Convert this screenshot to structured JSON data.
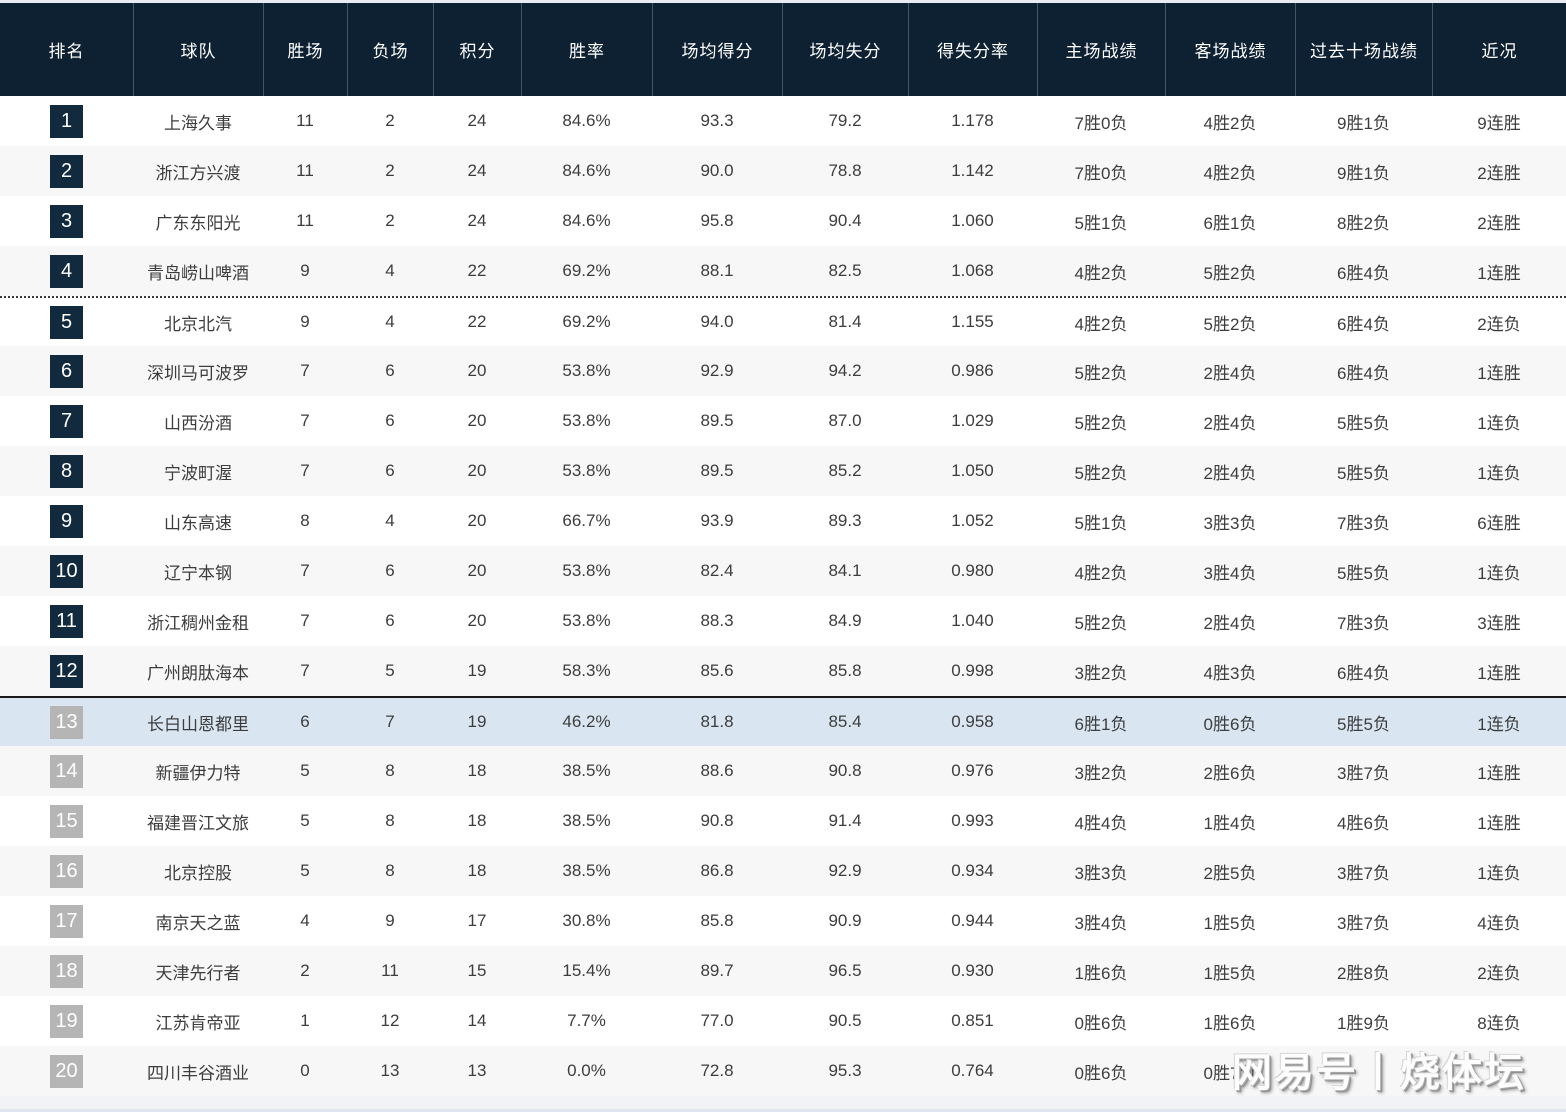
{
  "colors": {
    "header_bg": "#0e2132",
    "header_text": "#ffffff",
    "row_bg": "#ffffff",
    "row_alt_bg": "#f7f7f7",
    "highlight_row_bg": "#d9e6f2",
    "badge_navy": "#122a3e",
    "badge_gray": "#b5b5b5",
    "cell_text": "#3d3d3d"
  },
  "watermark": {
    "text": "网易号丨烧体坛"
  },
  "chart_data": {
    "type": "table",
    "title": "",
    "columns": [
      "排名",
      "球队",
      "胜场",
      "负场",
      "积分",
      "胜率",
      "场均得分",
      "场均失分",
      "得失分率",
      "主场战绩",
      "客场战绩",
      "过去十场战绩",
      "近况"
    ],
    "rows": [
      {
        "rank": "1",
        "team": "上海久事",
        "wins": "11",
        "losses": "2",
        "points": "24",
        "win_rate": "84.6%",
        "avg_scored": "93.3",
        "avg_allowed": "79.2",
        "ratio": "1.178",
        "home": "7胜0负",
        "away": "4胜2负",
        "last10": "9胜1负",
        "streak": "9连胜",
        "badge": "navy",
        "highlight": false,
        "divider": ""
      },
      {
        "rank": "2",
        "team": "浙江方兴渡",
        "wins": "11",
        "losses": "2",
        "points": "24",
        "win_rate": "84.6%",
        "avg_scored": "90.0",
        "avg_allowed": "78.8",
        "ratio": "1.142",
        "home": "7胜0负",
        "away": "4胜2负",
        "last10": "9胜1负",
        "streak": "2连胜",
        "badge": "navy",
        "highlight": false,
        "divider": ""
      },
      {
        "rank": "3",
        "team": "广东东阳光",
        "wins": "11",
        "losses": "2",
        "points": "24",
        "win_rate": "84.6%",
        "avg_scored": "95.8",
        "avg_allowed": "90.4",
        "ratio": "1.060",
        "home": "5胜1负",
        "away": "6胜1负",
        "last10": "8胜2负",
        "streak": "2连胜",
        "badge": "navy",
        "highlight": false,
        "divider": ""
      },
      {
        "rank": "4",
        "team": "青岛崂山啤酒",
        "wins": "9",
        "losses": "4",
        "points": "22",
        "win_rate": "69.2%",
        "avg_scored": "88.1",
        "avg_allowed": "82.5",
        "ratio": "1.068",
        "home": "4胜2负",
        "away": "5胜2负",
        "last10": "6胜4负",
        "streak": "1连胜",
        "badge": "navy",
        "highlight": false,
        "divider": ""
      },
      {
        "rank": "5",
        "team": "北京北汽",
        "wins": "9",
        "losses": "4",
        "points": "22",
        "win_rate": "69.2%",
        "avg_scored": "94.0",
        "avg_allowed": "81.4",
        "ratio": "1.155",
        "home": "4胜2负",
        "away": "5胜2负",
        "last10": "6胜4负",
        "streak": "2连负",
        "badge": "navy",
        "highlight": false,
        "divider": "dashed"
      },
      {
        "rank": "6",
        "team": "深圳马可波罗",
        "wins": "7",
        "losses": "6",
        "points": "20",
        "win_rate": "53.8%",
        "avg_scored": "92.9",
        "avg_allowed": "94.2",
        "ratio": "0.986",
        "home": "5胜2负",
        "away": "2胜4负",
        "last10": "6胜4负",
        "streak": "1连胜",
        "badge": "navy",
        "highlight": false,
        "divider": ""
      },
      {
        "rank": "7",
        "team": "山西汾酒",
        "wins": "7",
        "losses": "6",
        "points": "20",
        "win_rate": "53.8%",
        "avg_scored": "89.5",
        "avg_allowed": "87.0",
        "ratio": "1.029",
        "home": "5胜2负",
        "away": "2胜4负",
        "last10": "5胜5负",
        "streak": "1连负",
        "badge": "navy",
        "highlight": false,
        "divider": ""
      },
      {
        "rank": "8",
        "team": "宁波町渥",
        "wins": "7",
        "losses": "6",
        "points": "20",
        "win_rate": "53.8%",
        "avg_scored": "89.5",
        "avg_allowed": "85.2",
        "ratio": "1.050",
        "home": "5胜2负",
        "away": "2胜4负",
        "last10": "5胜5负",
        "streak": "1连负",
        "badge": "navy",
        "highlight": false,
        "divider": ""
      },
      {
        "rank": "9",
        "team": "山东高速",
        "wins": "8",
        "losses": "4",
        "points": "20",
        "win_rate": "66.7%",
        "avg_scored": "93.9",
        "avg_allowed": "89.3",
        "ratio": "1.052",
        "home": "5胜1负",
        "away": "3胜3负",
        "last10": "7胜3负",
        "streak": "6连胜",
        "badge": "navy",
        "highlight": false,
        "divider": ""
      },
      {
        "rank": "10",
        "team": "辽宁本钢",
        "wins": "7",
        "losses": "6",
        "points": "20",
        "win_rate": "53.8%",
        "avg_scored": "82.4",
        "avg_allowed": "84.1",
        "ratio": "0.980",
        "home": "4胜2负",
        "away": "3胜4负",
        "last10": "5胜5负",
        "streak": "1连负",
        "badge": "navy",
        "highlight": false,
        "divider": ""
      },
      {
        "rank": "11",
        "team": "浙江稠州金租",
        "wins": "7",
        "losses": "6",
        "points": "20",
        "win_rate": "53.8%",
        "avg_scored": "88.3",
        "avg_allowed": "84.9",
        "ratio": "1.040",
        "home": "5胜2负",
        "away": "2胜4负",
        "last10": "7胜3负",
        "streak": "3连胜",
        "badge": "navy",
        "highlight": false,
        "divider": ""
      },
      {
        "rank": "12",
        "team": "广州朗肽海本",
        "wins": "7",
        "losses": "5",
        "points": "19",
        "win_rate": "58.3%",
        "avg_scored": "85.6",
        "avg_allowed": "85.8",
        "ratio": "0.998",
        "home": "3胜2负",
        "away": "4胜3负",
        "last10": "6胜4负",
        "streak": "1连胜",
        "badge": "navy",
        "highlight": false,
        "divider": ""
      },
      {
        "rank": "13",
        "team": "长白山恩都里",
        "wins": "6",
        "losses": "7",
        "points": "19",
        "win_rate": "46.2%",
        "avg_scored": "81.8",
        "avg_allowed": "85.4",
        "ratio": "0.958",
        "home": "6胜1负",
        "away": "0胜6负",
        "last10": "5胜5负",
        "streak": "1连负",
        "badge": "gray",
        "highlight": true,
        "divider": "solid"
      },
      {
        "rank": "14",
        "team": "新疆伊力特",
        "wins": "5",
        "losses": "8",
        "points": "18",
        "win_rate": "38.5%",
        "avg_scored": "88.6",
        "avg_allowed": "90.8",
        "ratio": "0.976",
        "home": "3胜2负",
        "away": "2胜6负",
        "last10": "3胜7负",
        "streak": "1连胜",
        "badge": "gray",
        "highlight": false,
        "divider": ""
      },
      {
        "rank": "15",
        "team": "福建晋江文旅",
        "wins": "5",
        "losses": "8",
        "points": "18",
        "win_rate": "38.5%",
        "avg_scored": "90.8",
        "avg_allowed": "91.4",
        "ratio": "0.993",
        "home": "4胜4负",
        "away": "1胜4负",
        "last10": "4胜6负",
        "streak": "1连胜",
        "badge": "gray",
        "highlight": false,
        "divider": ""
      },
      {
        "rank": "16",
        "team": "北京控股",
        "wins": "5",
        "losses": "8",
        "points": "18",
        "win_rate": "38.5%",
        "avg_scored": "86.8",
        "avg_allowed": "92.9",
        "ratio": "0.934",
        "home": "3胜3负",
        "away": "2胜5负",
        "last10": "3胜7负",
        "streak": "1连负",
        "badge": "gray",
        "highlight": false,
        "divider": ""
      },
      {
        "rank": "17",
        "team": "南京天之蓝",
        "wins": "4",
        "losses": "9",
        "points": "17",
        "win_rate": "30.8%",
        "avg_scored": "85.8",
        "avg_allowed": "90.9",
        "ratio": "0.944",
        "home": "3胜4负",
        "away": "1胜5负",
        "last10": "3胜7负",
        "streak": "4连负",
        "badge": "gray",
        "highlight": false,
        "divider": ""
      },
      {
        "rank": "18",
        "team": "天津先行者",
        "wins": "2",
        "losses": "11",
        "points": "15",
        "win_rate": "15.4%",
        "avg_scored": "89.7",
        "avg_allowed": "96.5",
        "ratio": "0.930",
        "home": "1胜6负",
        "away": "1胜5负",
        "last10": "2胜8负",
        "streak": "2连负",
        "badge": "gray",
        "highlight": false,
        "divider": ""
      },
      {
        "rank": "19",
        "team": "江苏肯帝亚",
        "wins": "1",
        "losses": "12",
        "points": "14",
        "win_rate": "7.7%",
        "avg_scored": "77.0",
        "avg_allowed": "90.5",
        "ratio": "0.851",
        "home": "0胜6负",
        "away": "1胜6负",
        "last10": "1胜9负",
        "streak": "8连负",
        "badge": "gray",
        "highlight": false,
        "divider": ""
      },
      {
        "rank": "20",
        "team": "四川丰谷酒业",
        "wins": "0",
        "losses": "13",
        "points": "13",
        "win_rate": "0.0%",
        "avg_scored": "72.8",
        "avg_allowed": "95.3",
        "ratio": "0.764",
        "home": "0胜6负",
        "away": "0胜7负",
        "last10": "",
        "streak": "",
        "badge": "gray",
        "highlight": false,
        "divider": ""
      }
    ]
  }
}
